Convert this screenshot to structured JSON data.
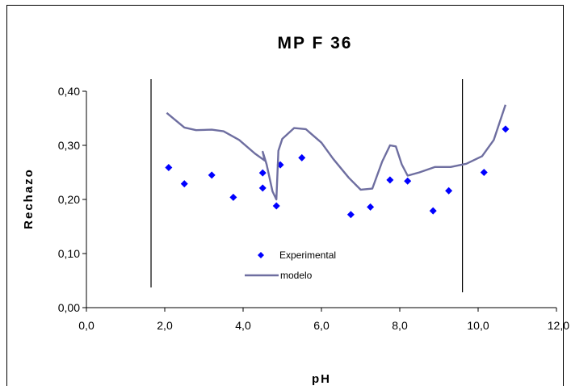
{
  "chart_data": {
    "type": "scatter",
    "title": "MP F 36",
    "xlabel": "pH",
    "ylabel": "Rechazo",
    "xlim": [
      0,
      12
    ],
    "ylim": [
      0,
      0.4
    ],
    "x_ticks": [
      "0,0",
      "2,0",
      "4,0",
      "6,0",
      "8,0",
      "10,0",
      "12,0"
    ],
    "y_ticks": [
      "0,00",
      "0,10",
      "0,20",
      "0,30",
      "0,40"
    ],
    "grid": false,
    "legend_position": "bottom-center",
    "vertical_lines_x": [
      1.65,
      9.6
    ],
    "series": [
      {
        "name": "Experimental",
        "kind": "markers",
        "color": "#0000ff",
        "marker": "diamond",
        "points": [
          [
            2.1,
            0.259
          ],
          [
            2.5,
            0.229
          ],
          [
            3.2,
            0.245
          ],
          [
            3.75,
            0.204
          ],
          [
            4.5,
            0.249
          ],
          [
            4.5,
            0.221
          ],
          [
            4.85,
            0.188
          ],
          [
            4.95,
            0.264
          ],
          [
            5.5,
            0.277
          ],
          [
            6.75,
            0.172
          ],
          [
            7.25,
            0.186
          ],
          [
            7.75,
            0.236
          ],
          [
            8.2,
            0.234
          ],
          [
            8.85,
            0.179
          ],
          [
            9.25,
            0.216
          ],
          [
            10.15,
            0.25
          ],
          [
            10.7,
            0.33
          ]
        ]
      },
      {
        "name": "modelo",
        "kind": "line",
        "color": "#6e6ea0",
        "points": [
          [
            2.05,
            0.36
          ],
          [
            2.3,
            0.345
          ],
          [
            2.5,
            0.333
          ],
          [
            2.8,
            0.328
          ],
          [
            3.2,
            0.329
          ],
          [
            3.5,
            0.326
          ],
          [
            3.9,
            0.31
          ],
          [
            4.3,
            0.285
          ],
          [
            4.55,
            0.272
          ],
          [
            4.5,
            0.288
          ],
          [
            4.6,
            0.265
          ],
          [
            4.75,
            0.215
          ],
          [
            4.85,
            0.2
          ],
          [
            4.9,
            0.29
          ],
          [
            5.0,
            0.312
          ],
          [
            5.3,
            0.332
          ],
          [
            5.6,
            0.33
          ],
          [
            6.0,
            0.305
          ],
          [
            6.3,
            0.275
          ],
          [
            6.7,
            0.24
          ],
          [
            7.0,
            0.218
          ],
          [
            7.3,
            0.22
          ],
          [
            7.55,
            0.27
          ],
          [
            7.75,
            0.3
          ],
          [
            7.9,
            0.298
          ],
          [
            8.05,
            0.265
          ],
          [
            8.2,
            0.244
          ],
          [
            8.5,
            0.25
          ],
          [
            8.9,
            0.26
          ],
          [
            9.3,
            0.26
          ],
          [
            9.7,
            0.266
          ],
          [
            10.1,
            0.28
          ],
          [
            10.4,
            0.31
          ],
          [
            10.7,
            0.375
          ]
        ]
      }
    ]
  }
}
